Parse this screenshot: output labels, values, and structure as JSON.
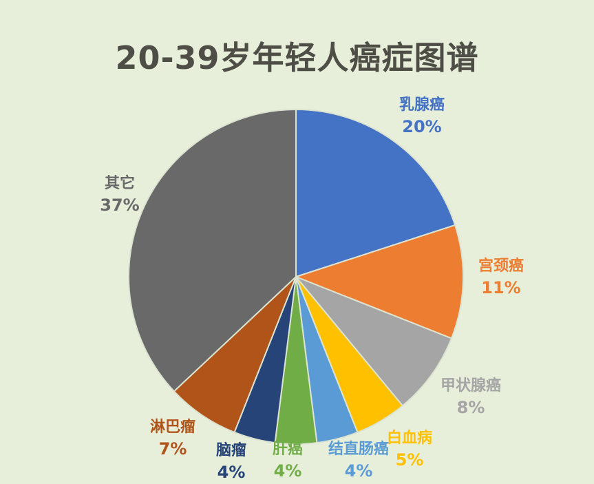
{
  "title": "20-39岁年轻人癌症图谱",
  "colors": {
    "background": "#E7EFDB",
    "title_text": "#4E4E46",
    "slice_stroke": "#DCE4D1"
  },
  "chart_data": {
    "type": "pie",
    "title": "20-39岁年轻人癌症图谱",
    "start_angle_deg": 0,
    "direction": "clockwise",
    "unit": "%",
    "legend_position": "around-slices",
    "slices": [
      {
        "label": "乳腺癌",
        "value": 20,
        "pct_label": "20%",
        "color": "#4472C4"
      },
      {
        "label": "宫颈癌",
        "value": 11,
        "pct_label": "11%",
        "color": "#ED7D31"
      },
      {
        "label": "甲状腺癌",
        "value": 8,
        "pct_label": "8%",
        "color": "#A5A5A5"
      },
      {
        "label": "白血病",
        "value": 5,
        "pct_label": "5%",
        "color": "#FFC000"
      },
      {
        "label": "结直肠癌",
        "value": 4,
        "pct_label": "4%",
        "color": "#5B9BD5"
      },
      {
        "label": "肝癌",
        "value": 4,
        "pct_label": "4%",
        "color": "#70AD47"
      },
      {
        "label": "脑瘤",
        "value": 4,
        "pct_label": "4%",
        "color": "#264478"
      },
      {
        "label": "淋巴瘤",
        "value": 7,
        "pct_label": "7%",
        "color": "#B0541A"
      },
      {
        "label": "其它",
        "value": 37,
        "pct_label": "37%",
        "color": "#696969"
      }
    ]
  }
}
